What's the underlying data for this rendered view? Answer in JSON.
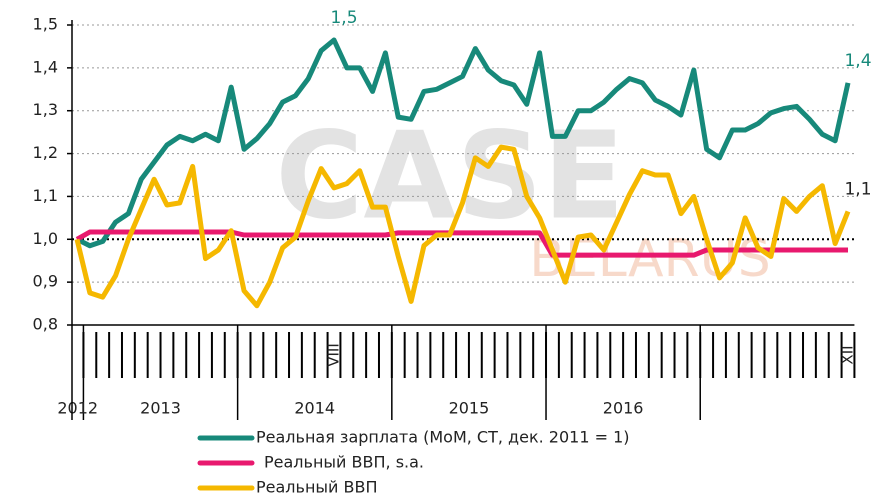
{
  "chart_data": {
    "type": "line",
    "categories": [
      null,
      null,
      null,
      null,
      null,
      null,
      null,
      null,
      null,
      null,
      null,
      null,
      null,
      null,
      null,
      null,
      null,
      null,
      null,
      null,
      "VIII",
      null,
      null,
      null,
      null,
      null,
      null,
      null,
      null,
      null,
      null,
      null,
      null,
      null,
      null,
      null,
      null,
      null,
      null,
      null,
      null,
      null,
      null,
      null,
      null,
      null,
      null,
      null,
      null,
      null,
      null,
      null,
      null,
      null,
      null,
      null,
      null,
      null,
      null,
      null,
      "XII"
    ],
    "years": [
      "2012",
      "2013",
      "2014",
      "2015",
      "2016"
    ],
    "ylim": [
      0.8,
      1.5
    ],
    "yticks": [
      {
        "value": 0.8,
        "label": "0,8"
      },
      {
        "value": 0.9,
        "label": "0,9"
      },
      {
        "value": 1.0,
        "label": "1,0"
      },
      {
        "value": 1.1,
        "label": "1,1"
      },
      {
        "value": 1.2,
        "label": "1,2"
      },
      {
        "value": 1.3,
        "label": "1,3"
      },
      {
        "value": 1.4,
        "label": "1,4"
      },
      {
        "value": 1.5,
        "label": "1,5"
      }
    ],
    "grid": true,
    "watermark": [
      "CASE",
      "BELARUS"
    ],
    "series": [
      {
        "name": "Реальная зарплата (MoM, CT, дек. 2011 = 1)",
        "color": "#17897a",
        "label_color": "#17897a",
        "values": [
          1.0,
          0.985,
          0.995,
          1.04,
          1.06,
          1.14,
          1.18,
          1.22,
          1.24,
          1.23,
          1.245,
          1.23,
          1.355,
          1.21,
          1.235,
          1.27,
          1.32,
          1.335,
          1.375,
          1.44,
          1.465,
          1.4,
          1.4,
          1.345,
          1.435,
          1.285,
          1.28,
          1.345,
          1.35,
          1.365,
          1.38,
          1.445,
          1.395,
          1.37,
          1.36,
          1.315,
          1.435,
          1.24,
          1.24,
          1.3,
          1.3,
          1.32,
          1.35,
          1.375,
          1.365,
          1.325,
          1.31,
          1.29,
          1.395,
          1.21,
          1.19,
          1.255,
          1.255,
          1.27,
          1.295,
          1.305,
          1.31,
          1.28,
          1.245,
          1.23,
          1.365
        ],
        "value_labels": [
          null,
          null,
          null,
          null,
          null,
          null,
          null,
          null,
          null,
          null,
          null,
          null,
          null,
          null,
          null,
          null,
          null,
          null,
          null,
          null,
          "1,5",
          null,
          null,
          null,
          null,
          null,
          null,
          null,
          null,
          null,
          null,
          null,
          null,
          null,
          null,
          null,
          null,
          null,
          null,
          null,
          null,
          null,
          null,
          null,
          null,
          null,
          null,
          null,
          null,
          null,
          null,
          null,
          null,
          null,
          null,
          null,
          null,
          null,
          null,
          null,
          "1,4"
        ]
      },
      {
        "name": "Реальный ВВП, s.a.",
        "color": "#e8196e",
        "values": [
          1.0,
          1.017,
          1.017,
          1.017,
          1.017,
          1.017,
          1.017,
          1.017,
          1.017,
          1.017,
          1.017,
          1.017,
          1.017,
          1.01,
          1.01,
          1.01,
          1.01,
          1.01,
          1.01,
          1.01,
          1.01,
          1.01,
          1.01,
          1.01,
          1.01,
          1.015,
          1.015,
          1.015,
          1.015,
          1.015,
          1.015,
          1.015,
          1.015,
          1.015,
          1.015,
          1.015,
          1.015,
          0.963,
          0.963,
          0.963,
          0.963,
          0.963,
          0.963,
          0.963,
          0.963,
          0.963,
          0.963,
          0.963,
          0.963,
          0.975,
          0.975,
          0.975,
          0.975,
          0.975,
          0.975,
          0.975,
          0.975,
          0.975,
          0.975,
          0.975,
          0.975
        ]
      },
      {
        "name": "Реальный ВВП",
        "color": "#f5b800",
        "label_color": "#222222",
        "values": [
          1.0,
          0.875,
          0.865,
          0.915,
          1.0,
          1.07,
          1.14,
          1.08,
          1.085,
          1.17,
          0.955,
          0.975,
          1.02,
          0.88,
          0.845,
          0.9,
          0.98,
          1.005,
          1.09,
          1.165,
          1.12,
          1.13,
          1.16,
          1.075,
          1.075,
          0.96,
          0.855,
          0.985,
          1.01,
          1.01,
          1.085,
          1.19,
          1.17,
          1.215,
          1.21,
          1.1,
          1.05,
          0.975,
          0.9,
          1.005,
          1.01,
          0.975,
          1.04,
          1.105,
          1.16,
          1.15,
          1.15,
          1.06,
          1.1,
          1.0,
          0.91,
          0.945,
          1.05,
          0.98,
          0.96,
          1.095,
          1.065,
          1.1,
          1.125,
          0.99,
          1.065
        ],
        "value_labels": [
          null,
          null,
          null,
          null,
          null,
          null,
          null,
          null,
          null,
          null,
          null,
          null,
          null,
          null,
          null,
          null,
          null,
          null,
          null,
          null,
          null,
          null,
          null,
          null,
          null,
          null,
          null,
          null,
          null,
          null,
          null,
          null,
          null,
          null,
          null,
          null,
          null,
          null,
          null,
          null,
          null,
          null,
          null,
          null,
          null,
          null,
          null,
          null,
          null,
          null,
          null,
          null,
          null,
          null,
          null,
          null,
          null,
          null,
          null,
          null,
          "1,1"
        ]
      }
    ]
  }
}
